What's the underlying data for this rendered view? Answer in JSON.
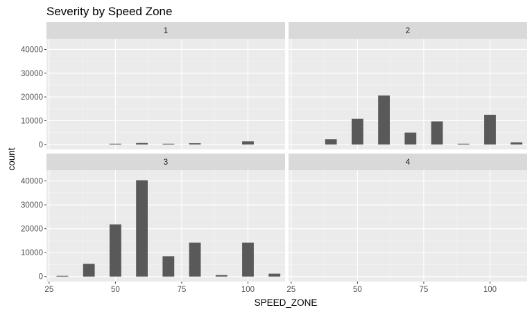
{
  "chart_data": {
    "type": "bar",
    "title": "Severity by Speed Zone",
    "xlabel": "SPEED_ZONE",
    "ylabel": "count",
    "xlim": [
      24,
      114
    ],
    "ylim": [
      -2100,
      44500
    ],
    "x_ticks": [
      25,
      50,
      75,
      100
    ],
    "y_ticks": [
      0,
      10000,
      20000,
      30000,
      40000
    ],
    "bar_width": 4.4,
    "grid": true,
    "legend": "none",
    "bar_color": "#595959",
    "panel_bg": "#ebebeb",
    "strip_bg": "#d9d9d9",
    "panels": [
      {
        "label": "1",
        "x": [
          50,
          60,
          70,
          80,
          100
        ],
        "values": [
          300,
          600,
          300,
          500,
          1300
        ]
      },
      {
        "label": "2",
        "x": [
          40,
          50,
          60,
          70,
          80,
          90,
          100,
          110
        ],
        "values": [
          2200,
          10800,
          20600,
          5000,
          9700,
          300,
          12500,
          900
        ]
      },
      {
        "label": "3",
        "x": [
          30,
          40,
          50,
          60,
          70,
          80,
          90,
          100,
          110
        ],
        "values": [
          300,
          5300,
          21800,
          40300,
          8500,
          14200,
          600,
          14200,
          1200
        ]
      },
      {
        "label": "4",
        "x": [],
        "values": []
      }
    ]
  }
}
